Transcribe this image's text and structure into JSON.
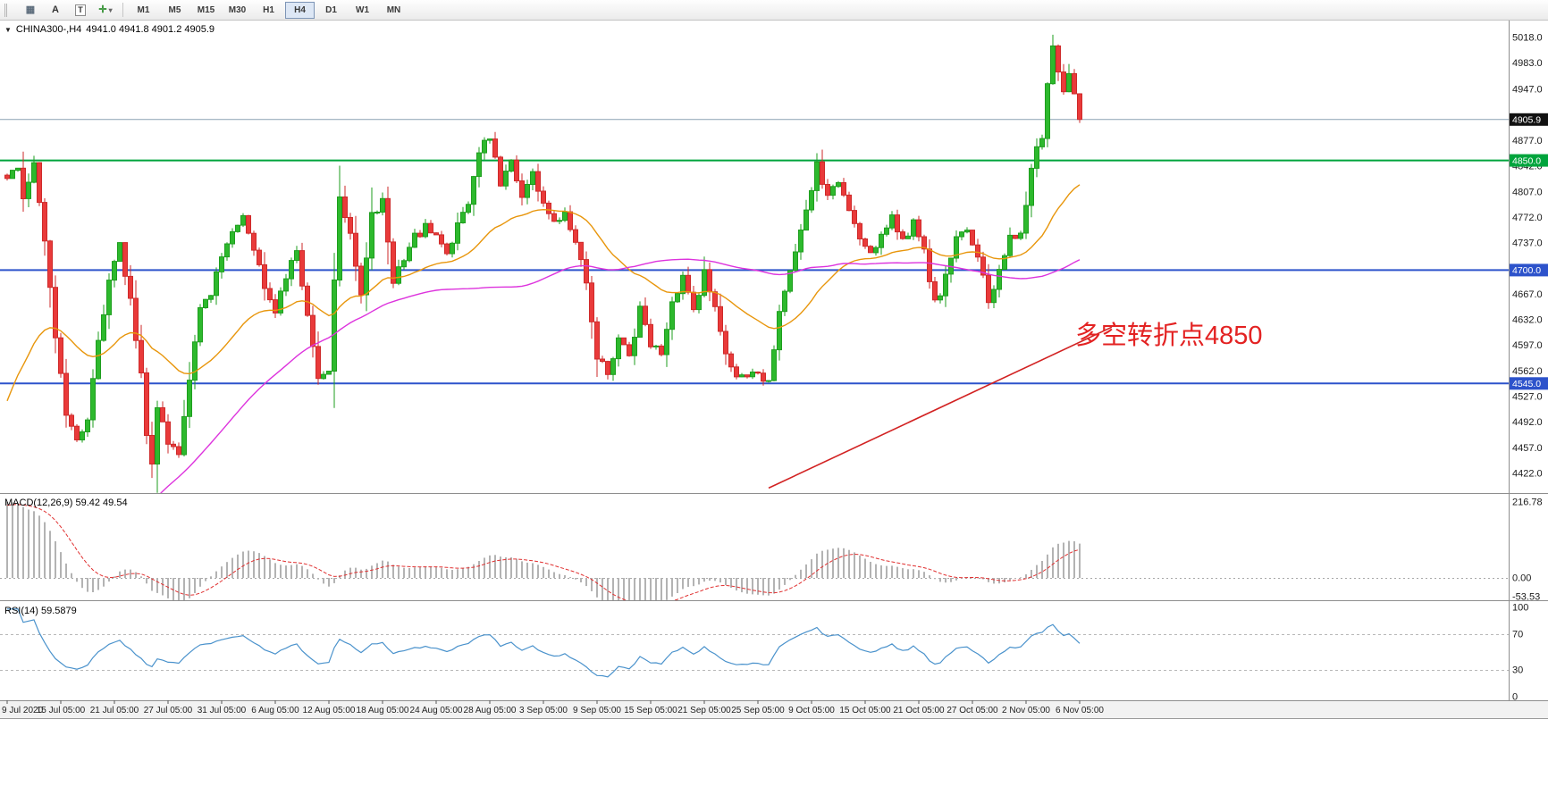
{
  "toolbar": {
    "icons": [
      {
        "name": "chart-grid-icon",
        "glyph": "▦",
        "color": "#5a6a7a",
        "boxed": false,
        "caret": false
      },
      {
        "name": "arrow-tool-icon",
        "glyph": "A",
        "color": "#333333",
        "boxed": false,
        "caret": false
      },
      {
        "name": "text-tool-icon",
        "glyph": "T",
        "color": "#333333",
        "boxed": true,
        "caret": false
      },
      {
        "name": "indicator-tool-icon",
        "glyph": "✛",
        "color": "#2f8f2f",
        "boxed": false,
        "caret": true
      }
    ],
    "timeframes": [
      "M1",
      "M5",
      "M15",
      "M30",
      "H1",
      "H4",
      "D1",
      "W1",
      "MN"
    ],
    "active_timeframe": "H4"
  },
  "header": {
    "collapse_glyph": "▼",
    "symbol_label": "CHINA300-,H4",
    "ohlc_values": "4941.0 4941.8 4901.2 4905.9"
  },
  "annotation": {
    "text": "多空转折点4850",
    "color": "#e32222"
  },
  "price_axis": {
    "labels": [
      "5018.0",
      "4983.0",
      "4947.0",
      "4877.0",
      "4842.0",
      "4807.0",
      "4772.0",
      "4737.0",
      "4667.0",
      "4632.0",
      "4597.0",
      "4562.0",
      "4527.0",
      "4492.0",
      "4457.0",
      "4422.0"
    ],
    "badges": [
      {
        "label": "4905.9",
        "price": 4905.9,
        "bg": "#111111"
      },
      {
        "label": "4850.0",
        "price": 4850.0,
        "bg": "#00a43c"
      },
      {
        "label": "4700.0",
        "price": 4700.0,
        "bg": "#2d53cb"
      },
      {
        "label": "4545.0",
        "price": 4545.0,
        "bg": "#2d53cb"
      }
    ]
  },
  "macd_panel": {
    "label": "MACD(12,26,9) 59.42 49.54",
    "axis_labels": [
      {
        "text": "216.78",
        "value": 216.78
      },
      {
        "text": "0.00",
        "value": 0
      },
      {
        "text": "-53.53",
        "value": -53.53
      }
    ]
  },
  "rsi_panel": {
    "label": "RSI(14) 59.5879",
    "axis_labels": [
      {
        "text": "100",
        "value": 100
      },
      {
        "text": "70",
        "value": 70
      },
      {
        "text": "30",
        "value": 30
      },
      {
        "text": "0",
        "value": 0
      }
    ]
  },
  "time_axis": {
    "labels": [
      "9 Jul 2020",
      "15 Jul 05:00",
      "21 Jul 05:00",
      "27 Jul 05:00",
      "31 Jul 05:00",
      "6 Aug 05:00",
      "12 Aug 05:00",
      "18 Aug 05:00",
      "24 Aug 05:00",
      "28 Aug 05:00",
      "3 Sep 05:00",
      "9 Sep 05:00",
      "15 Sep 05:00",
      "21 Sep 05:00",
      "25 Sep 05:00",
      "9 Oct 05:00",
      "15 Oct 05:00",
      "21 Oct 05:00",
      "27 Oct 05:00",
      "2 Nov 05:00",
      "6 Nov 05:00"
    ]
  },
  "chart_data": {
    "type": "candlestick",
    "symbol": "CHINA300-",
    "timeframe": "H4",
    "title": "CHINA300-,H4",
    "visible_bars": 201,
    "y_range": [
      4422.0,
      5018.0
    ],
    "last_bar_ohlc": {
      "open": 4941.0,
      "high": 4941.8,
      "low": 4901.2,
      "close": 4905.9
    },
    "close_path_anchors": [
      [
        0,
        4822
      ],
      [
        2,
        4846
      ],
      [
        3,
        4795
      ],
      [
        5,
        4842
      ],
      [
        7,
        4746
      ],
      [
        9,
        4612
      ],
      [
        11,
        4505
      ],
      [
        13,
        4472
      ],
      [
        15,
        4498
      ],
      [
        17,
        4608
      ],
      [
        19,
        4682
      ],
      [
        21,
        4732
      ],
      [
        23,
        4660
      ],
      [
        25,
        4560
      ],
      [
        26,
        4478
      ],
      [
        27,
        4428
      ],
      [
        28,
        4515
      ],
      [
        30,
        4468
      ],
      [
        32,
        4452
      ],
      [
        34,
        4545
      ],
      [
        36,
        4645
      ],
      [
        38,
        4672
      ],
      [
        40,
        4718
      ],
      [
        42,
        4758
      ],
      [
        44,
        4772
      ],
      [
        46,
        4730
      ],
      [
        48,
        4678
      ],
      [
        50,
        4648
      ],
      [
        52,
        4695
      ],
      [
        54,
        4722
      ],
      [
        56,
        4640
      ],
      [
        58,
        4552
      ],
      [
        60,
        4568
      ],
      [
        62,
        4805
      ],
      [
        64,
        4752
      ],
      [
        66,
        4668
      ],
      [
        68,
        4772
      ],
      [
        70,
        4792
      ],
      [
        72,
        4688
      ],
      [
        74,
        4712
      ],
      [
        76,
        4745
      ],
      [
        78,
        4758
      ],
      [
        80,
        4748
      ],
      [
        82,
        4722
      ],
      [
        84,
        4762
      ],
      [
        86,
        4790
      ],
      [
        88,
        4862
      ],
      [
        90,
        4882
      ],
      [
        92,
        4820
      ],
      [
        94,
        4850
      ],
      [
        96,
        4802
      ],
      [
        98,
        4832
      ],
      [
        100,
        4792
      ],
      [
        102,
        4762
      ],
      [
        104,
        4782
      ],
      [
        106,
        4742
      ],
      [
        108,
        4688
      ],
      [
        110,
        4582
      ],
      [
        112,
        4560
      ],
      [
        114,
        4608
      ],
      [
        116,
        4582
      ],
      [
        118,
        4645
      ],
      [
        120,
        4602
      ],
      [
        122,
        4582
      ],
      [
        124,
        4652
      ],
      [
        126,
        4688
      ],
      [
        128,
        4645
      ],
      [
        130,
        4698
      ],
      [
        132,
        4648
      ],
      [
        134,
        4582
      ],
      [
        136,
        4556
      ],
      [
        138,
        4548
      ],
      [
        140,
        4560
      ],
      [
        142,
        4548
      ],
      [
        144,
        4648
      ],
      [
        146,
        4695
      ],
      [
        148,
        4748
      ],
      [
        150,
        4812
      ],
      [
        151,
        4842
      ],
      [
        153,
        4800
      ],
      [
        155,
        4822
      ],
      [
        157,
        4780
      ],
      [
        159,
        4742
      ],
      [
        161,
        4718
      ],
      [
        163,
        4752
      ],
      [
        165,
        4772
      ],
      [
        167,
        4742
      ],
      [
        169,
        4762
      ],
      [
        171,
        4722
      ],
      [
        173,
        4655
      ],
      [
        175,
        4688
      ],
      [
        177,
        4742
      ],
      [
        179,
        4752
      ],
      [
        181,
        4722
      ],
      [
        183,
        4652
      ],
      [
        185,
        4702
      ],
      [
        187,
        4748
      ],
      [
        189,
        4748
      ],
      [
        190,
        4792
      ],
      [
        191,
        4838
      ],
      [
        192,
        4872
      ],
      [
        193,
        4885
      ],
      [
        194,
        4958
      ],
      [
        195,
        5002
      ],
      [
        196,
        4972
      ],
      [
        197,
        4945
      ],
      [
        198,
        4962
      ],
      [
        199,
        4941
      ],
      [
        200,
        4905.9
      ]
    ],
    "horizontal_lines": [
      {
        "price": 4850.0,
        "color": "#00a43c",
        "width": 2
      },
      {
        "price": 4700.0,
        "color": "#2d53cb",
        "width": 2
      },
      {
        "price": 4545.0,
        "color": "#2d53cb",
        "width": 2
      }
    ],
    "bid_price_line": {
      "price": 4905.9,
      "color": "#8aa0b4"
    },
    "trend_line": {
      "from_bar": 142,
      "from_price": 4402,
      "to_bar": 206,
      "to_price": 4622,
      "color": "#d22222"
    },
    "moving_averages": [
      {
        "type": "ema",
        "period": 34,
        "color": "#e8960c"
      },
      {
        "type": "sma",
        "period": 89,
        "color": "#dd33dd"
      }
    ],
    "macd": {
      "fast": 12,
      "slow": 26,
      "signal": 9,
      "current_main": 59.42,
      "current_signal": 49.54,
      "scale_max": 216.78,
      "scale_min": -53.53,
      "histogram_color": "#b3b3b3",
      "signal_color": "#e03030"
    },
    "rsi": {
      "period": 14,
      "current": 59.5879,
      "color": "#4a92cc",
      "levels": [
        70,
        30
      ],
      "level_line_color": "#b8b8b8"
    },
    "candle_colors": {
      "up": "#2db92d",
      "up_border": "#1e9e1e",
      "down": "#e93a3a",
      "down_border": "#ce2a2a"
    }
  }
}
